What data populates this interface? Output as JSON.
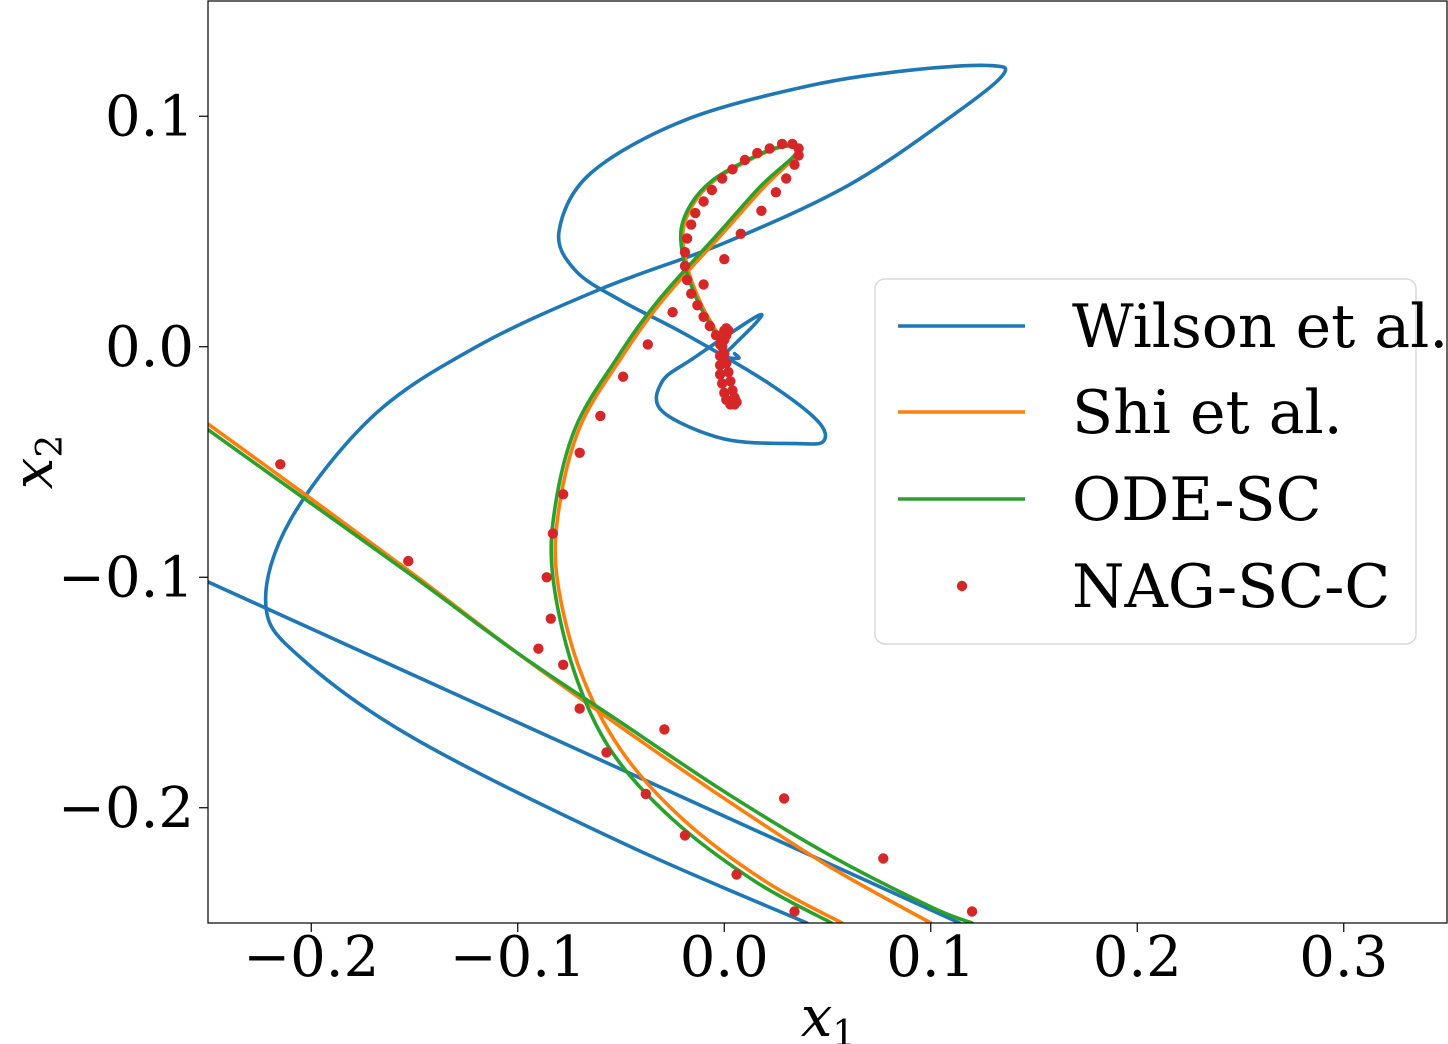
{
  "chart_data": {
    "type": "line",
    "title": "",
    "xlabel": {
      "base": "x",
      "sub": "1"
    },
    "ylabel": {
      "base": "x",
      "sub": "2"
    },
    "xlim": [
      -0.25,
      0.35
    ],
    "ylim": [
      -0.25,
      0.15
    ],
    "xticks": [
      {
        "value": -0.2,
        "label": "−0.2"
      },
      {
        "value": -0.1,
        "label": "−0.1"
      },
      {
        "value": 0.0,
        "label": "0.0"
      },
      {
        "value": 0.1,
        "label": "0.1"
      },
      {
        "value": 0.2,
        "label": "0.2"
      },
      {
        "value": 0.3,
        "label": "0.3"
      }
    ],
    "yticks": [
      {
        "value": 0.1,
        "label": "0.1"
      },
      {
        "value": 0.0,
        "label": "0.0"
      },
      {
        "value": -0.1,
        "label": "−0.1"
      },
      {
        "value": -0.2,
        "label": "−0.2"
      }
    ],
    "grid": false,
    "legend_position": "center-right",
    "series": [
      {
        "name": "Wilson et al.",
        "kind": "line",
        "color": "#1f77b4",
        "points": [
          [
            -0.25,
            -0.102
          ],
          [
            0.114,
            -0.25
          ],
          null,
          [
            0.04,
            -0.25
          ],
          [
            -0.05,
            -0.215
          ],
          [
            -0.15,
            -0.17
          ],
          [
            -0.205,
            -0.135
          ],
          [
            -0.222,
            -0.112
          ],
          [
            -0.21,
            -0.075
          ],
          [
            -0.17,
            -0.03
          ],
          [
            -0.12,
            0.0
          ],
          [
            -0.06,
            0.025
          ],
          [
            0.0,
            0.045
          ],
          [
            0.06,
            0.07
          ],
          [
            0.11,
            0.1
          ],
          [
            0.135,
            0.118
          ],
          [
            0.128,
            0.122
          ],
          [
            0.09,
            0.12
          ],
          [
            0.04,
            0.113
          ],
          [
            -0.02,
            0.098
          ],
          [
            -0.065,
            0.075
          ],
          [
            -0.08,
            0.05
          ],
          [
            -0.072,
            0.033
          ],
          [
            -0.05,
            0.02
          ],
          [
            -0.02,
            0.006
          ],
          [
            0.02,
            -0.015
          ],
          [
            0.045,
            -0.032
          ],
          [
            0.048,
            -0.041
          ],
          [
            0.035,
            -0.042
          ],
          [
            0.0,
            -0.04
          ],
          [
            -0.03,
            -0.028
          ],
          [
            -0.03,
            -0.015
          ],
          [
            -0.015,
            -0.005
          ],
          [
            0.01,
            0.01
          ],
          [
            0.018,
            0.014
          ],
          [
            0.015,
            0.01
          ],
          [
            0.005,
            0.001
          ],
          [
            0.0,
            -0.004
          ],
          [
            0.007,
            -0.005
          ],
          [
            0.005,
            -0.003
          ]
        ]
      },
      {
        "name": "Shi et al.",
        "kind": "line",
        "color": "#ff7f0e",
        "points": [
          [
            -0.25,
            -0.0335
          ],
          [
            -0.2,
            -0.066
          ],
          [
            -0.15,
            -0.099
          ],
          [
            -0.1,
            -0.133
          ],
          [
            -0.05,
            -0.165
          ],
          [
            0.0,
            -0.196
          ],
          [
            0.05,
            -0.225
          ],
          [
            0.1,
            -0.25
          ],
          null,
          [
            0.057,
            -0.25
          ],
          [
            0.02,
            -0.232
          ],
          [
            -0.02,
            -0.205
          ],
          [
            -0.05,
            -0.175
          ],
          [
            -0.07,
            -0.14
          ],
          [
            -0.081,
            -0.1
          ],
          [
            -0.08,
            -0.07
          ],
          [
            -0.07,
            -0.035
          ],
          [
            -0.05,
            -0.005
          ],
          [
            -0.03,
            0.02
          ],
          [
            0.0,
            0.05
          ],
          [
            0.02,
            0.07
          ],
          [
            0.035,
            0.083
          ],
          [
            0.035,
            0.087
          ],
          [
            0.025,
            0.086
          ],
          [
            0.01,
            0.08
          ],
          [
            -0.005,
            0.072
          ],
          [
            -0.015,
            0.062
          ],
          [
            -0.02,
            0.05
          ],
          [
            -0.018,
            0.035
          ],
          [
            -0.012,
            0.02
          ],
          [
            -0.006,
            0.01
          ],
          [
            -0.002,
            0.004
          ]
        ]
      },
      {
        "name": "ODE-SC",
        "kind": "line",
        "color": "#2ca02c",
        "points": [
          [
            -0.25,
            -0.036
          ],
          [
            -0.2,
            -0.068
          ],
          [
            -0.15,
            -0.1
          ],
          [
            -0.1,
            -0.133
          ],
          [
            -0.05,
            -0.163
          ],
          [
            0.0,
            -0.193
          ],
          [
            0.05,
            -0.22
          ],
          [
            0.1,
            -0.243
          ],
          [
            0.12,
            -0.25
          ],
          null,
          [
            0.052,
            -0.25
          ],
          [
            0.015,
            -0.232
          ],
          [
            -0.025,
            -0.205
          ],
          [
            -0.055,
            -0.175
          ],
          [
            -0.073,
            -0.14
          ],
          [
            -0.083,
            -0.1
          ],
          [
            -0.082,
            -0.07
          ],
          [
            -0.072,
            -0.035
          ],
          [
            -0.052,
            -0.005
          ],
          [
            -0.032,
            0.02
          ],
          [
            -0.002,
            0.05
          ],
          [
            0.018,
            0.07
          ],
          [
            0.034,
            0.083
          ],
          [
            0.034,
            0.087
          ],
          [
            0.024,
            0.086
          ],
          [
            0.009,
            0.08
          ],
          [
            -0.006,
            0.072
          ],
          [
            -0.016,
            0.062
          ],
          [
            -0.021,
            0.05
          ],
          [
            -0.019,
            0.035
          ],
          [
            -0.013,
            0.02
          ],
          [
            -0.007,
            0.01
          ],
          [
            -0.003,
            0.004
          ]
        ]
      },
      {
        "name": "NAG-SC-C",
        "kind": "scatter",
        "color": "#d62728",
        "points": [
          [
            -0.215,
            -0.051
          ],
          [
            -0.153,
            -0.093
          ],
          [
            -0.09,
            -0.131
          ],
          [
            -0.029,
            -0.166
          ],
          [
            0.029,
            -0.196
          ],
          [
            0.077,
            -0.222
          ],
          [
            0.12,
            -0.245
          ],
          [
            0.034,
            -0.245
          ],
          [
            0.006,
            -0.229
          ],
          [
            -0.019,
            -0.212
          ],
          [
            -0.038,
            -0.194
          ],
          [
            -0.057,
            -0.176
          ],
          [
            -0.07,
            -0.157
          ],
          [
            -0.078,
            -0.138
          ],
          [
            -0.084,
            -0.118
          ],
          [
            -0.086,
            -0.1
          ],
          [
            -0.083,
            -0.081
          ],
          [
            -0.078,
            -0.064
          ],
          [
            -0.07,
            -0.046
          ],
          [
            -0.06,
            -0.03
          ],
          [
            -0.049,
            -0.013
          ],
          [
            -0.037,
            0.001
          ],
          [
            -0.025,
            0.015
          ],
          [
            -0.01,
            0.027
          ],
          [
            0.0,
            0.038
          ],
          [
            0.008,
            0.049
          ],
          [
            0.018,
            0.059
          ],
          [
            0.025,
            0.067
          ],
          [
            0.03,
            0.073
          ],
          [
            0.034,
            0.079
          ],
          [
            0.036,
            0.083
          ],
          [
            0.036,
            0.086
          ],
          [
            0.033,
            0.088
          ],
          [
            0.028,
            0.088
          ],
          [
            0.022,
            0.086
          ],
          [
            0.016,
            0.084
          ],
          [
            0.01,
            0.081
          ],
          [
            0.004,
            0.077
          ],
          [
            -0.001,
            0.073
          ],
          [
            -0.006,
            0.068
          ],
          [
            -0.01,
            0.063
          ],
          [
            -0.014,
            0.058
          ],
          [
            -0.016,
            0.053
          ],
          [
            -0.018,
            0.047
          ],
          [
            -0.019,
            0.041
          ],
          [
            -0.019,
            0.035
          ],
          [
            -0.018,
            0.029
          ],
          [
            -0.016,
            0.023
          ],
          [
            -0.013,
            0.018
          ],
          [
            -0.01,
            0.013
          ],
          [
            -0.007,
            0.009
          ],
          [
            -0.004,
            0.005
          ],
          [
            -0.002,
            0.001
          ],
          [
            0.0,
            -0.003
          ],
          [
            0.001,
            -0.007
          ],
          [
            0.002,
            -0.011
          ],
          [
            0.003,
            -0.015
          ],
          [
            0.004,
            -0.019
          ],
          [
            0.005,
            -0.022
          ],
          [
            0.006,
            -0.024
          ],
          [
            0.005,
            -0.025
          ],
          [
            0.003,
            -0.025
          ],
          [
            0.001,
            -0.023
          ],
          [
            0.0,
            -0.02
          ],
          [
            -0.001,
            -0.016
          ],
          [
            -0.002,
            -0.012
          ],
          [
            -0.002,
            -0.008
          ],
          [
            -0.002,
            -0.004
          ],
          [
            -0.001,
            0.0
          ],
          [
            0.0,
            0.003
          ],
          [
            0.001,
            0.005
          ],
          [
            0.002,
            0.007
          ],
          [
            0.001,
            0.008
          ],
          [
            0.0,
            0.007
          ]
        ]
      }
    ]
  }
}
